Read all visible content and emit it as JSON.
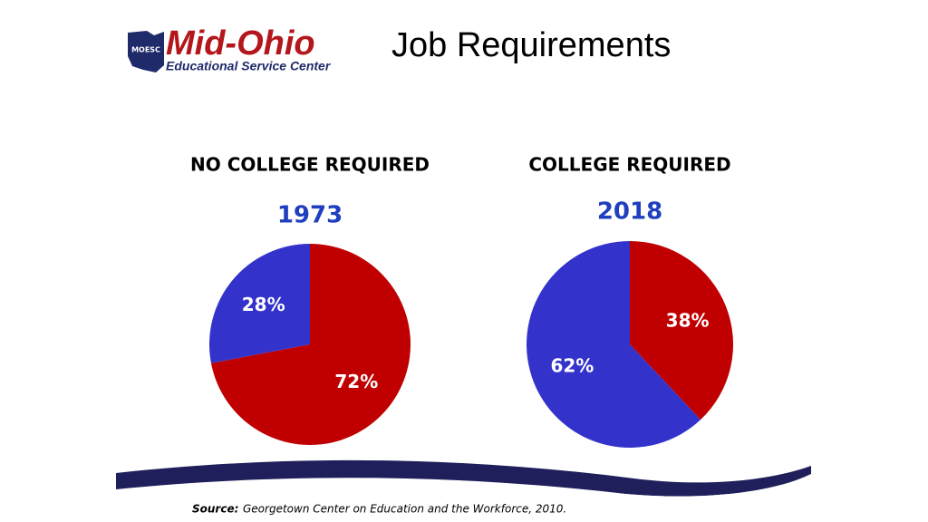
{
  "header": {
    "logo_abbr": "MOESC",
    "logo_name": "Mid-Ohio",
    "logo_tagline": "Educational Service Center",
    "title": "Job Requirements"
  },
  "chart_data": [
    {
      "type": "pie",
      "title": "NO COLLEGE REQUIRED",
      "subtitle": "1973",
      "subtitle_color": "#1f3fbf",
      "values": [
        72,
        28
      ],
      "value_labels": [
        "72%",
        "28%"
      ],
      "colors": [
        "#c00000",
        "#3333cc"
      ]
    },
    {
      "type": "pie",
      "title": "COLLEGE REQUIRED",
      "subtitle": "2018",
      "subtitle_color": "#1f3fbf",
      "values": [
        38,
        62
      ],
      "value_labels": [
        "38%",
        "62%"
      ],
      "colors": [
        "#c00000",
        "#3333cc"
      ]
    }
  ],
  "footer": {
    "source_label": "Source:",
    "source_text": "Georgetown Center on Education and the Workforce, 2010."
  }
}
